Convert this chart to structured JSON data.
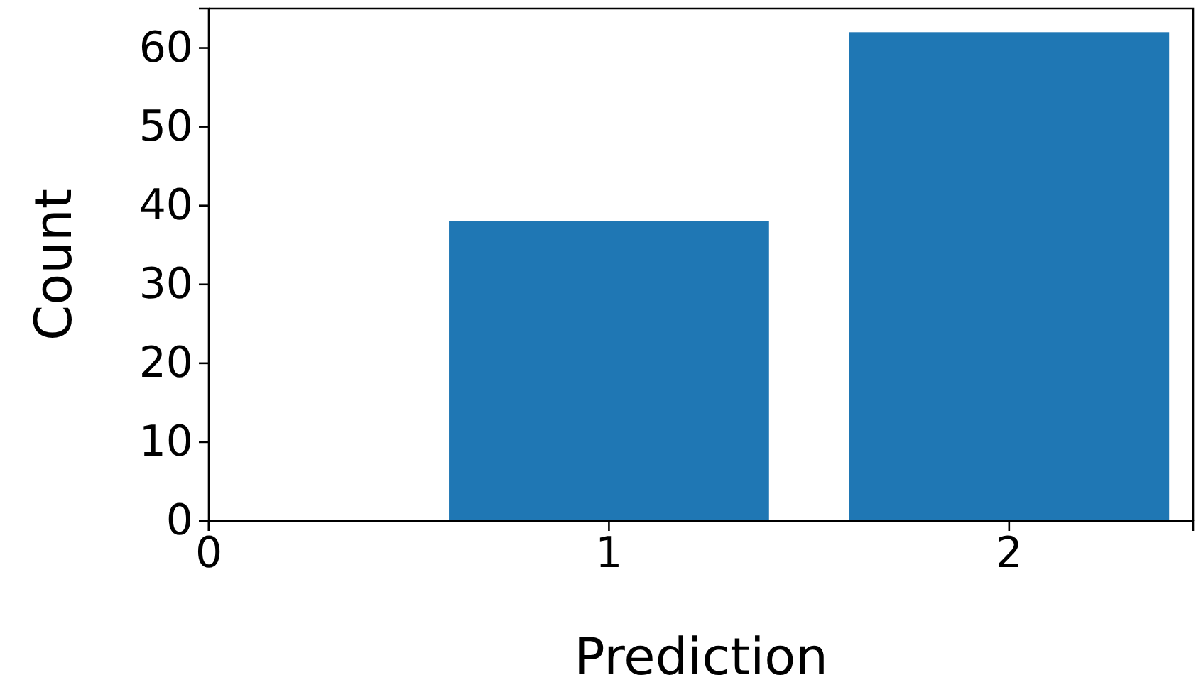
{
  "chart_data": {
    "type": "bar",
    "xlabel": "Prediction",
    "ylabel": "Count",
    "x": [
      1,
      2
    ],
    "values": [
      38,
      62
    ],
    "color": "#1f77b4",
    "xlim": [
      0,
      2.46
    ],
    "xticks": [
      0,
      1,
      2
    ],
    "ylim": [
      0,
      65
    ],
    "yticks": [
      0,
      10,
      20,
      30,
      40,
      50,
      60
    ],
    "grid": false
  }
}
